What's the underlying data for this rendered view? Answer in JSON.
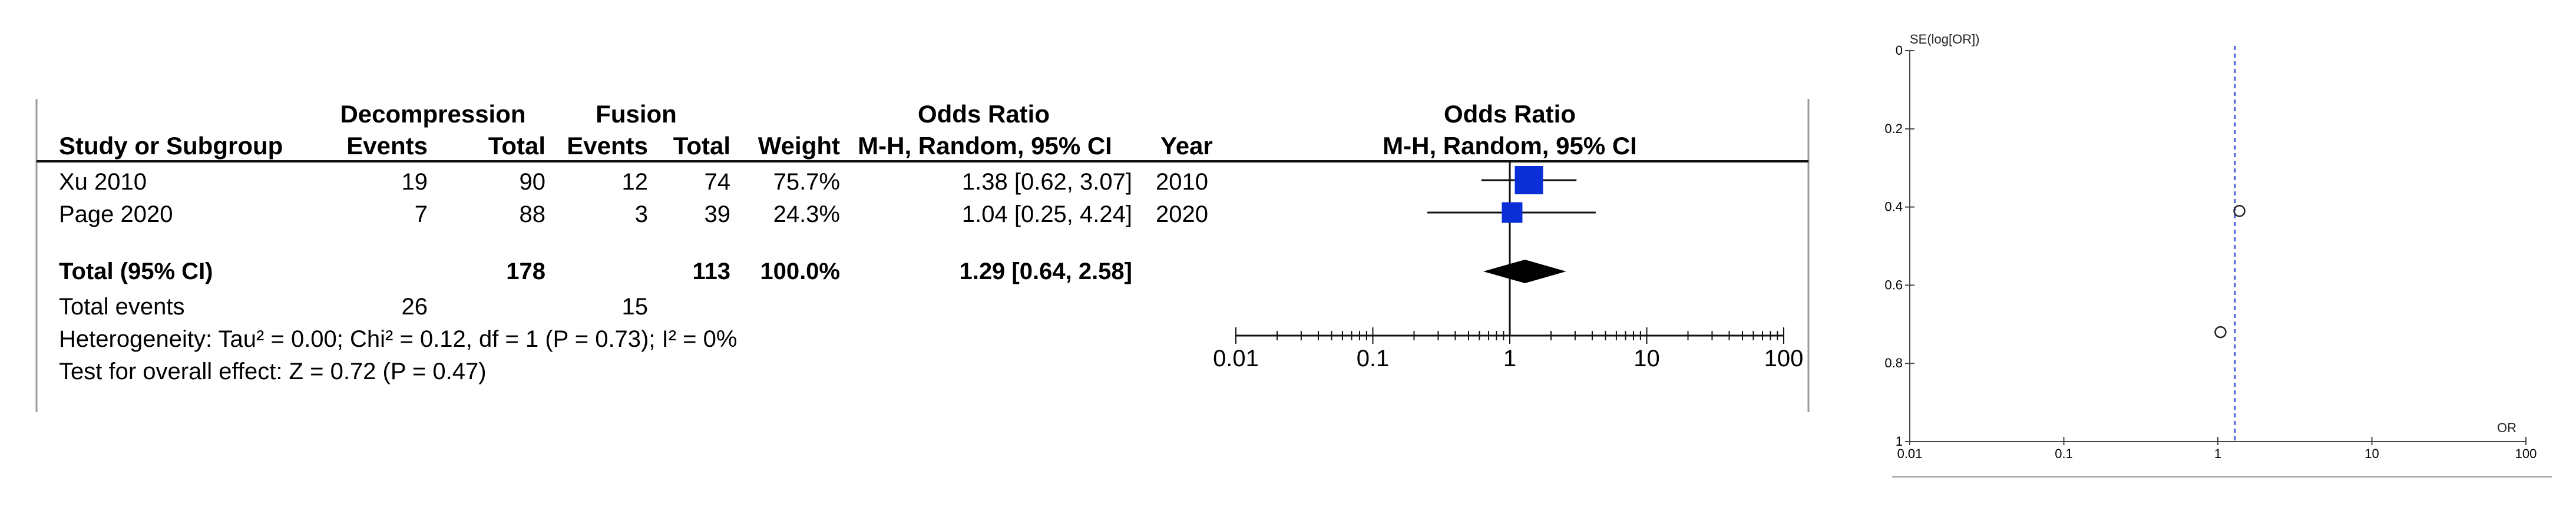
{
  "forest": {
    "headers": {
      "study": "Study or Subgroup",
      "group1": "Decompression",
      "group2": "Fusion",
      "events": "Events",
      "total": "Total",
      "weight": "Weight",
      "or_top": "Odds Ratio",
      "or_method": "M-H, Random, 95% CI",
      "year": "Year"
    },
    "studies": [
      {
        "name": "Xu 2010",
        "e1": "19",
        "t1": "90",
        "e2": "12",
        "t2": "74",
        "weight": "75.7%",
        "ci_text": "1.38 [0.62, 3.07]",
        "year": "2010"
      },
      {
        "name": "Page 2020",
        "e1": "7",
        "t1": "88",
        "e2": "3",
        "t2": "39",
        "weight": "24.3%",
        "ci_text": "1.04 [0.25, 4.24]",
        "year": "2020"
      }
    ],
    "total": {
      "label": "Total (95% CI)",
      "t1": "178",
      "t2": "113",
      "weight": "100.0%",
      "ci_text": "1.29 [0.64, 2.58]"
    },
    "total_events": {
      "label": "Total events",
      "e1": "26",
      "e2": "15"
    },
    "heterogeneity": "Heterogeneity: Tau² = 0.00; Chi² = 0.12, df = 1 (P = 0.73); I² = 0%",
    "overall_effect": "Test for overall effect: Z = 0.72 (P = 0.47)",
    "axis_ticks": [
      "0.01",
      "0.1",
      "1",
      "10",
      "100"
    ]
  },
  "funnel": {
    "y_title": "SE(log[OR])",
    "x_title": "OR",
    "y_ticks": [
      "0",
      "0.2",
      "0.4",
      "0.6",
      "0.8",
      "1"
    ],
    "x_ticks": [
      "0.01",
      "0.1",
      "1",
      "10",
      "100"
    ]
  },
  "chart_data": [
    {
      "type": "forest",
      "scale": "log",
      "xlim": [
        0.01,
        100
      ],
      "null_line": 1,
      "studies": [
        {
          "name": "Xu 2010",
          "or": 1.38,
          "lower": 0.62,
          "upper": 3.07,
          "weight": 75.7
        },
        {
          "name": "Page 2020",
          "or": 1.04,
          "lower": 0.25,
          "upper": 4.24,
          "weight": 24.3
        }
      ],
      "pooled": {
        "or": 1.29,
        "lower": 0.64,
        "upper": 2.58
      },
      "colors": {
        "box": "#0a2fd6",
        "diamond": "#000000"
      }
    },
    {
      "type": "scatter",
      "title": "",
      "xlabel": "OR",
      "ylabel": "SE(log[OR])",
      "x_scale": "log",
      "xlim": [
        0.01,
        100
      ],
      "ylim": [
        0,
        1
      ],
      "y_inverted": true,
      "points": [
        {
          "x": 1.38,
          "y": 0.41
        },
        {
          "x": 1.04,
          "y": 0.72
        }
      ],
      "reference_line": {
        "x": 1.29,
        "style": "dashed",
        "color": "#4a5fe0"
      }
    }
  ]
}
